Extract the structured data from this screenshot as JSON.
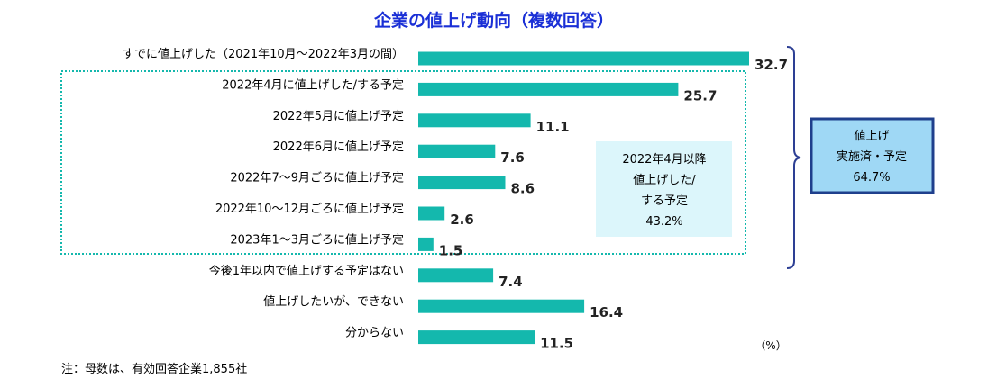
{
  "chart_data": {
    "type": "bar",
    "orientation": "horizontal",
    "title": "企業の値上げ動向（複数回答）",
    "unit": "（%）",
    "xlim": [
      0,
      32.7
    ],
    "grid": false,
    "categories": [
      "すでに値上げした（2021年10月～2022年3月の間）",
      "2022年4月に値上げした/する予定",
      "2022年5月に値上げ予定",
      "2022年6月に値上げ予定",
      "2022年7～9月ごろに値上げ予定",
      "2022年10～12月ごろに値上げ予定",
      "2023年1～3月ごろに値上げ予定",
      "今後1年以内で値上げする予定はない",
      "値上げしたいが、できない",
      "分からない"
    ],
    "values": [
      32.7,
      25.7,
      11.1,
      7.6,
      8.6,
      2.6,
      1.5,
      7.4,
      16.4,
      11.5
    ],
    "value_labels": [
      "32.7",
      "25.7",
      "11.1",
      "7.6",
      "8.6",
      "2.6",
      "1.5",
      "7.4",
      "16.4",
      "11.5"
    ],
    "annotations": [
      {
        "lines": [
          "2022年4月以降",
          "値上げした/",
          "する予定",
          "43.2%"
        ]
      },
      {
        "lines": [
          "値上げ",
          "実施済・予定",
          "64.7%"
        ]
      }
    ],
    "note": "注：母数は、有効回答企業1,855社"
  },
  "colors": {
    "bar": "#14b8ad",
    "title": "#1a2fd6",
    "dotted_box": "#14b8ad",
    "bracket": "#2d3f94",
    "callout_inner_fill": "#dcf6fb",
    "callout_outer_fill": "#9fd8f5",
    "callout_outer_border": "#1f3f8c"
  }
}
